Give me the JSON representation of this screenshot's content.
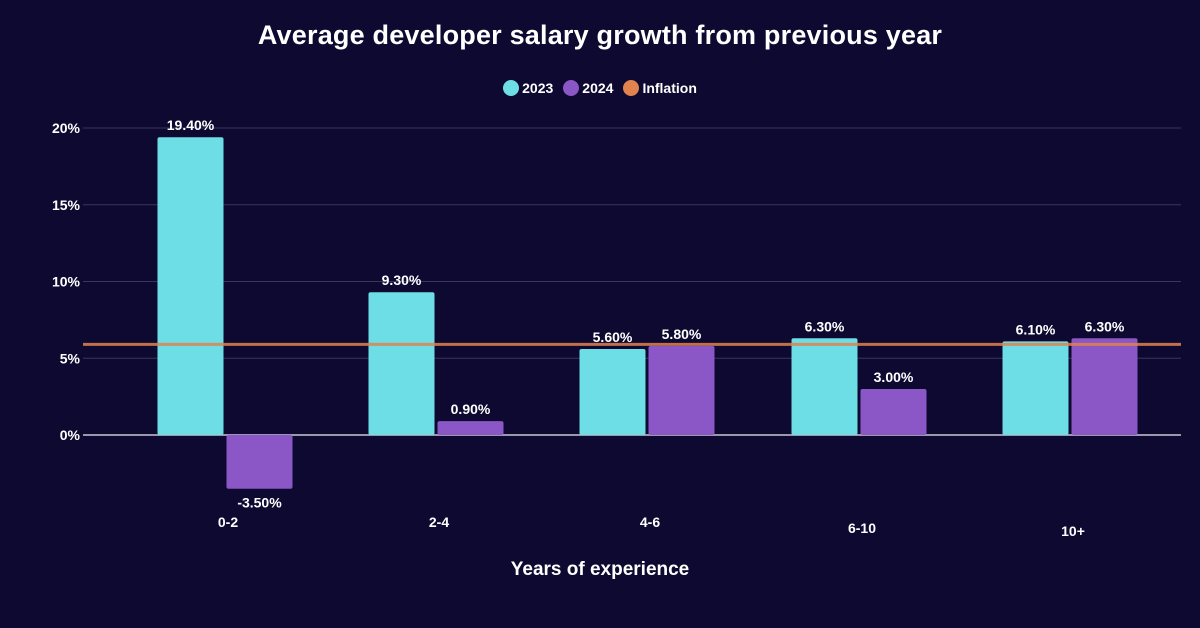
{
  "chart_data": {
    "type": "bar",
    "title": "Average developer salary growth from previous year",
    "xlabel": "Years of experience",
    "ylabel": "",
    "categories": [
      "0-2",
      "2-4",
      "4-6",
      "6-10",
      "10+"
    ],
    "series": [
      {
        "name": "2023",
        "color": "#6ddde6",
        "values": [
          19.4,
          9.3,
          5.6,
          6.3,
          6.1
        ],
        "labels": [
          "19.40%",
          "9.30%",
          "5.60%",
          "6.30%",
          "6.10%"
        ]
      },
      {
        "name": "2024",
        "color": "#8b56c6",
        "values": [
          -3.5,
          0.9,
          5.8,
          3.0,
          6.3
        ],
        "labels": [
          "-3.50%",
          "0.90%",
          "5.80%",
          "3.00%",
          "6.30%"
        ]
      }
    ],
    "reference_line": {
      "name": "Inflation",
      "color": "#e0834e",
      "value": 5.9
    },
    "ylim": [
      -5,
      20
    ],
    "yticks": [
      0,
      5,
      10,
      15,
      20
    ],
    "ytick_labels": [
      "0%",
      "5%",
      "10%",
      "15%",
      "20%"
    ],
    "grid": true,
    "legend": [
      "2023",
      "2024",
      "Inflation"
    ],
    "legend_position": "top-center",
    "background": "#0e0930"
  }
}
